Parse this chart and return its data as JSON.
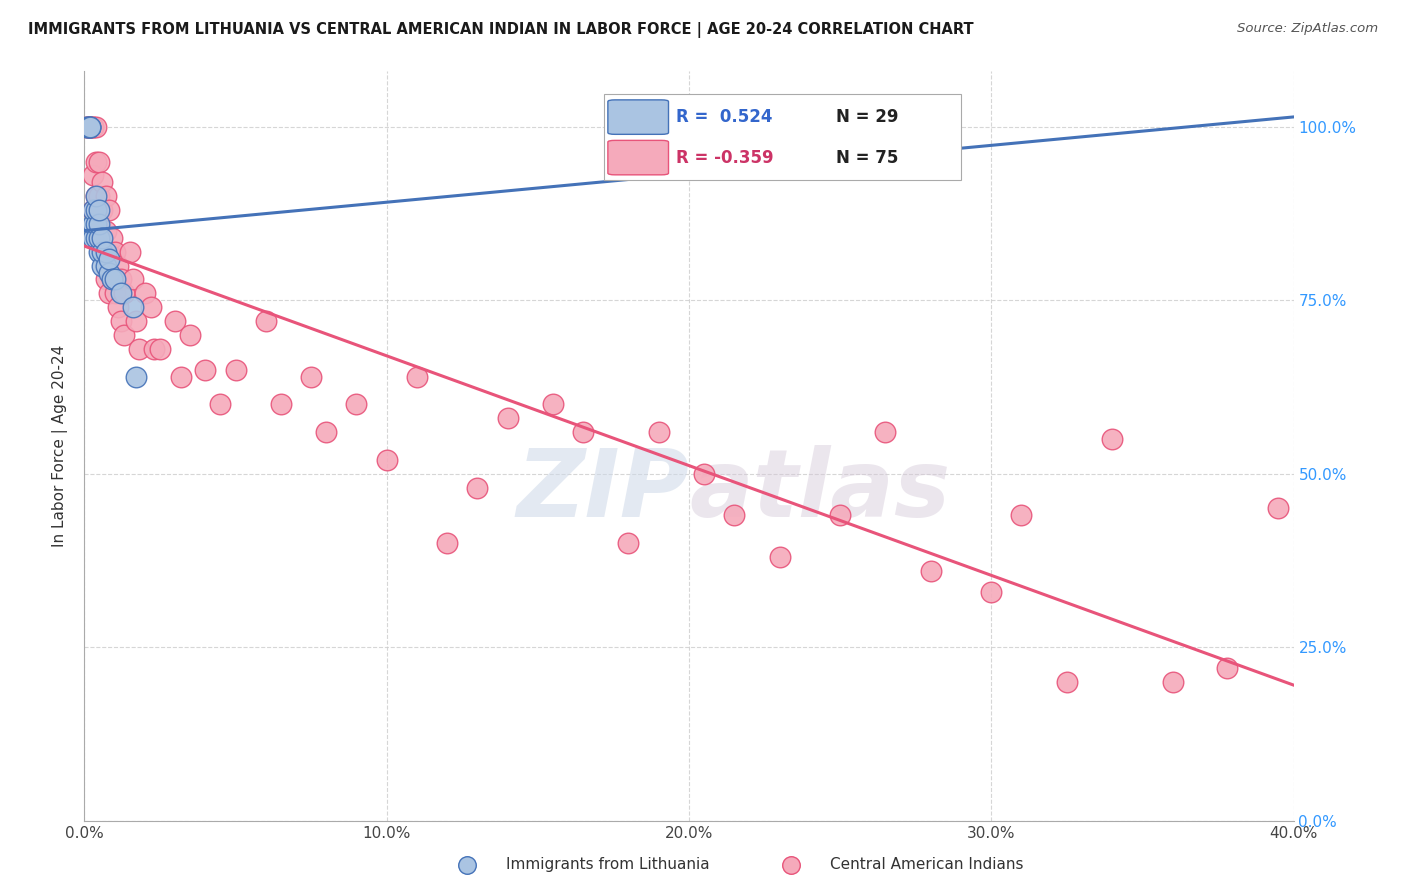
{
  "title": "IMMIGRANTS FROM LITHUANIA VS CENTRAL AMERICAN INDIAN IN LABOR FORCE | AGE 20-24 CORRELATION CHART",
  "source": "Source: ZipAtlas.com",
  "ylabel": "In Labor Force | Age 20-24",
  "xlabel_ticks": [
    "0.0%",
    "10.0%",
    "20.0%",
    "30.0%",
    "40.0%"
  ],
  "ylabel_ticks": [
    "0.0%",
    "25.0%",
    "50.0%",
    "75.0%",
    "100.0%"
  ],
  "xlim": [
    0.0,
    0.4
  ],
  "ylim": [
    0.0,
    1.08
  ],
  "blue_R": 0.524,
  "blue_N": 29,
  "pink_R": -0.359,
  "pink_N": 75,
  "blue_color": "#aac4e2",
  "pink_color": "#f5aabb",
  "blue_line_color": "#4472b8",
  "pink_line_color": "#e8547a",
  "watermark_zip": "ZIP",
  "watermark_atlas": "atlas",
  "legend_label_blue": "Immigrants from Lithuania",
  "legend_label_pink": "Central American Indians",
  "blue_x": [
    0.001,
    0.001,
    0.002,
    0.002,
    0.002,
    0.003,
    0.003,
    0.003,
    0.004,
    0.004,
    0.004,
    0.004,
    0.005,
    0.005,
    0.005,
    0.005,
    0.006,
    0.006,
    0.006,
    0.007,
    0.007,
    0.008,
    0.008,
    0.009,
    0.01,
    0.012,
    0.016,
    0.017,
    0.22
  ],
  "blue_y": [
    1.0,
    1.0,
    1.0,
    1.0,
    1.0,
    0.84,
    0.86,
    0.88,
    0.84,
    0.86,
    0.88,
    0.9,
    0.82,
    0.84,
    0.86,
    0.88,
    0.8,
    0.82,
    0.84,
    0.8,
    0.82,
    0.79,
    0.81,
    0.78,
    0.78,
    0.76,
    0.74,
    0.64,
    0.98
  ],
  "pink_x": [
    0.001,
    0.001,
    0.002,
    0.002,
    0.002,
    0.003,
    0.003,
    0.003,
    0.003,
    0.004,
    0.004,
    0.004,
    0.005,
    0.005,
    0.005,
    0.006,
    0.006,
    0.006,
    0.007,
    0.007,
    0.007,
    0.008,
    0.008,
    0.008,
    0.009,
    0.009,
    0.01,
    0.01,
    0.011,
    0.011,
    0.012,
    0.012,
    0.013,
    0.013,
    0.015,
    0.016,
    0.017,
    0.018,
    0.02,
    0.022,
    0.023,
    0.025,
    0.03,
    0.032,
    0.035,
    0.04,
    0.045,
    0.05,
    0.06,
    0.065,
    0.075,
    0.08,
    0.09,
    0.1,
    0.11,
    0.12,
    0.13,
    0.14,
    0.155,
    0.165,
    0.18,
    0.19,
    0.205,
    0.215,
    0.23,
    0.25,
    0.265,
    0.28,
    0.3,
    0.31,
    0.325,
    0.34,
    0.36,
    0.378,
    0.395
  ],
  "pink_y": [
    1.0,
    1.0,
    1.0,
    1.0,
    1.0,
    1.0,
    1.0,
    0.93,
    0.88,
    1.0,
    0.95,
    0.9,
    0.95,
    0.9,
    0.85,
    0.92,
    0.88,
    0.83,
    0.9,
    0.85,
    0.78,
    0.88,
    0.82,
    0.76,
    0.84,
    0.78,
    0.82,
    0.76,
    0.8,
    0.74,
    0.78,
    0.72,
    0.76,
    0.7,
    0.82,
    0.78,
    0.72,
    0.68,
    0.76,
    0.74,
    0.68,
    0.68,
    0.72,
    0.64,
    0.7,
    0.65,
    0.6,
    0.65,
    0.72,
    0.6,
    0.64,
    0.56,
    0.6,
    0.52,
    0.64,
    0.4,
    0.48,
    0.58,
    0.6,
    0.56,
    0.4,
    0.56,
    0.5,
    0.44,
    0.38,
    0.44,
    0.56,
    0.36,
    0.33,
    0.44,
    0.2,
    0.55,
    0.2,
    0.22,
    0.45
  ]
}
